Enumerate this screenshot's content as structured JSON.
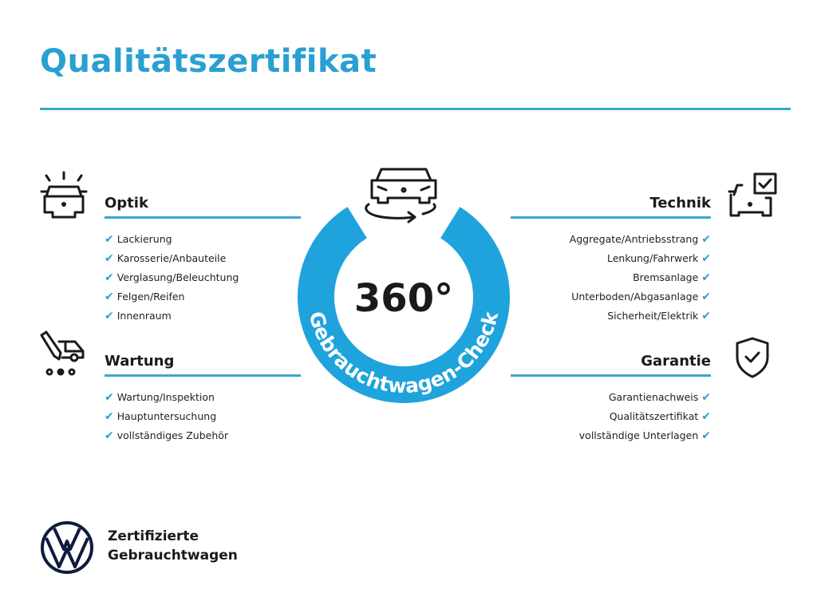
{
  "title": "Qualitätszertifikat",
  "colors": {
    "accent": "#2aa0d2",
    "ring": "#1fa3dc",
    "text": "#1a1a1a"
  },
  "center": {
    "big": "360°",
    "ring_text": "Gebrauchtwagen-Check",
    "icon": "car-rotate-icon"
  },
  "optik": {
    "heading": "Optik",
    "icon": "car-lights-icon",
    "items": [
      "Lackierung",
      "Karosserie/Anbauteile",
      "Verglasung/Beleuchtung",
      "Felgen/Reifen",
      "Innenraum"
    ]
  },
  "wartung": {
    "heading": "Wartung",
    "icon": "service-van-icon",
    "items": [
      "Wartung/Inspektion",
      "Hauptuntersuchung",
      "vollständiges Zubehör"
    ]
  },
  "technik": {
    "heading": "Technik",
    "icon": "car-checklist-icon",
    "items": [
      "Aggregate/Antriebsstrang",
      "Lenkung/Fahrwerk",
      "Bremsanlage",
      "Unterboden/Abgasanlage",
      "Sicherheit/Elektrik"
    ]
  },
  "garantie": {
    "heading": "Garantie",
    "icon": "shield-check-icon",
    "items": [
      "Garantienachweis",
      "Qualitätszertifikat",
      "vollständige Unterlagen"
    ]
  },
  "check_mark": "✔",
  "brand": {
    "line1": "Zertifizierte",
    "line2": "Gebrauchtwagen",
    "logo": "vw-logo"
  }
}
